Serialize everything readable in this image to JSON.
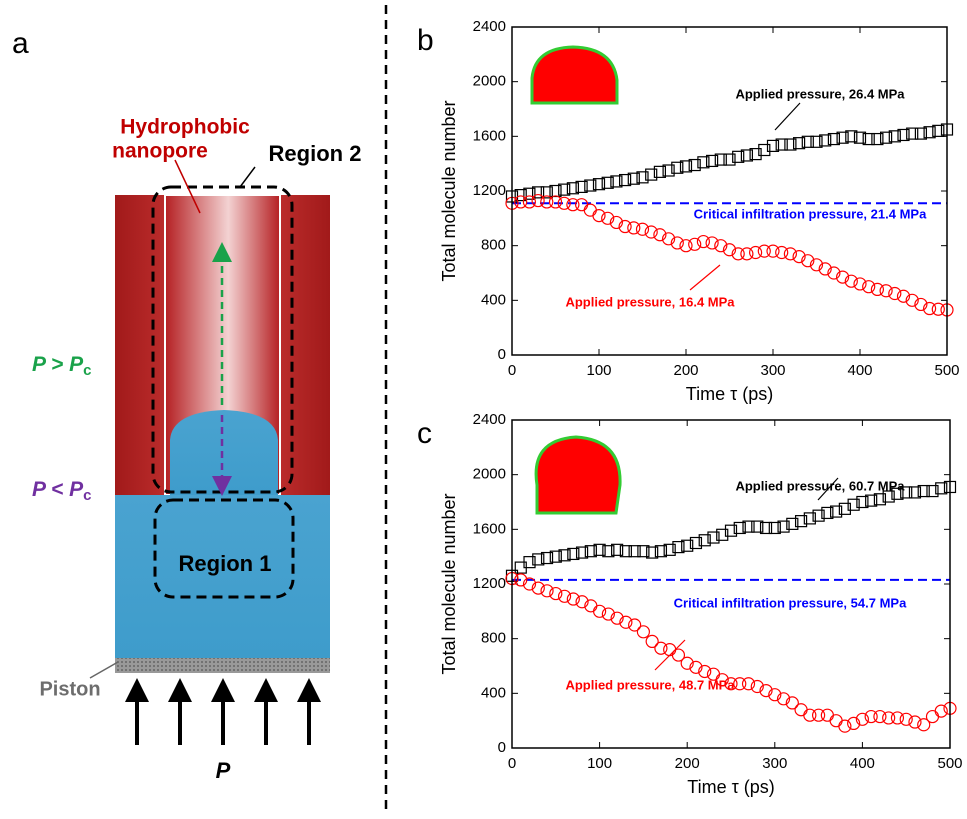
{
  "diagram": {
    "panel": "a",
    "pore_label": [
      "Hydrophobic",
      "nanopore"
    ],
    "region2": "Region 2",
    "region1": "Region 1",
    "above": {
      "main": "P > P",
      "sub": "c"
    },
    "below": {
      "main": "P < P",
      "sub": "c"
    },
    "piston": "Piston",
    "force": "P"
  },
  "chart_data": [
    {
      "type": "scatter",
      "panel": "b",
      "xlabel": "Time τ (ps)",
      "ylabel": "Total molecule number",
      "xlim": [
        0,
        500
      ],
      "xticks": [
        0,
        100,
        200,
        300,
        400,
        500
      ],
      "ylim": [
        0,
        2400
      ],
      "yticks": [
        0,
        400,
        800,
        1200,
        1600,
        2000,
        2400
      ],
      "x": [
        0,
        10,
        20,
        30,
        40,
        50,
        60,
        70,
        80,
        90,
        100,
        110,
        120,
        130,
        140,
        150,
        160,
        170,
        180,
        190,
        200,
        210,
        220,
        230,
        240,
        250,
        260,
        270,
        280,
        290,
        300,
        310,
        320,
        330,
        340,
        350,
        360,
        370,
        380,
        390,
        400,
        410,
        420,
        430,
        440,
        450,
        460,
        470,
        480,
        490,
        500
      ],
      "series": [
        {
          "name": "Applied pressure, 26.4 MPa",
          "color": "#000000",
          "marker": "square",
          "values": [
            1160,
            1170,
            1180,
            1190,
            1190,
            1200,
            1210,
            1220,
            1230,
            1240,
            1250,
            1260,
            1270,
            1280,
            1290,
            1300,
            1320,
            1340,
            1350,
            1370,
            1380,
            1390,
            1410,
            1420,
            1430,
            1430,
            1450,
            1460,
            1470,
            1500,
            1530,
            1540,
            1540,
            1550,
            1560,
            1560,
            1570,
            1580,
            1590,
            1600,
            1590,
            1580,
            1580,
            1590,
            1600,
            1610,
            1620,
            1620,
            1630,
            1640,
            1650
          ]
        },
        {
          "name": "Applied pressure, 16.4 MPa",
          "color": "#ff0000",
          "marker": "circle",
          "values": [
            1110,
            1120,
            1120,
            1130,
            1120,
            1120,
            1110,
            1100,
            1100,
            1060,
            1020,
            1000,
            970,
            940,
            930,
            920,
            900,
            880,
            850,
            820,
            800,
            810,
            830,
            820,
            800,
            770,
            740,
            740,
            750,
            760,
            760,
            750,
            740,
            720,
            690,
            660,
            630,
            600,
            570,
            540,
            520,
            500,
            480,
            470,
            450,
            430,
            400,
            370,
            340,
            335,
            330
          ]
        }
      ],
      "reference": {
        "label": "Critical infiltration pressure, 21.4 MPa",
        "value": 1110,
        "color": "#0000ff"
      }
    },
    {
      "type": "scatter",
      "panel": "c",
      "xlabel": "Time τ (ps)",
      "ylabel": "Total molecule number",
      "xlim": [
        0,
        500
      ],
      "xticks": [
        0,
        100,
        200,
        300,
        400,
        500
      ],
      "ylim": [
        0,
        2400
      ],
      "yticks": [
        0,
        400,
        800,
        1200,
        1600,
        2000,
        2400
      ],
      "x": [
        0,
        10,
        20,
        30,
        40,
        50,
        60,
        70,
        80,
        90,
        100,
        110,
        120,
        130,
        140,
        150,
        160,
        170,
        180,
        190,
        200,
        210,
        220,
        230,
        240,
        250,
        260,
        270,
        280,
        290,
        300,
        310,
        320,
        330,
        340,
        350,
        360,
        370,
        380,
        390,
        400,
        410,
        420,
        430,
        440,
        450,
        460,
        470,
        480,
        490,
        500
      ],
      "series": [
        {
          "name": "Applied pressure, 60.7 MPa",
          "color": "#000000",
          "marker": "square",
          "values": [
            1260,
            1320,
            1360,
            1380,
            1390,
            1400,
            1410,
            1420,
            1430,
            1440,
            1450,
            1440,
            1450,
            1440,
            1440,
            1440,
            1430,
            1440,
            1450,
            1470,
            1480,
            1500,
            1520,
            1540,
            1560,
            1590,
            1610,
            1620,
            1620,
            1610,
            1610,
            1620,
            1640,
            1660,
            1680,
            1700,
            1720,
            1730,
            1750,
            1780,
            1800,
            1810,
            1820,
            1840,
            1860,
            1870,
            1870,
            1880,
            1880,
            1900,
            1910
          ]
        },
        {
          "name": "Applied pressure, 48.7 MPa",
          "color": "#ff0000",
          "marker": "circle",
          "values": [
            1240,
            1230,
            1200,
            1170,
            1150,
            1130,
            1110,
            1090,
            1070,
            1040,
            1000,
            980,
            950,
            920,
            900,
            850,
            780,
            730,
            720,
            680,
            620,
            590,
            560,
            540,
            500,
            470,
            470,
            470,
            450,
            420,
            390,
            360,
            330,
            280,
            240,
            240,
            240,
            200,
            160,
            180,
            210,
            230,
            230,
            220,
            220,
            210,
            190,
            170,
            230,
            270,
            290
          ]
        }
      ],
      "reference": {
        "label": "Critical infiltration pressure, 54.7 MPa",
        "value": 1230,
        "color": "#0000ff"
      }
    }
  ]
}
